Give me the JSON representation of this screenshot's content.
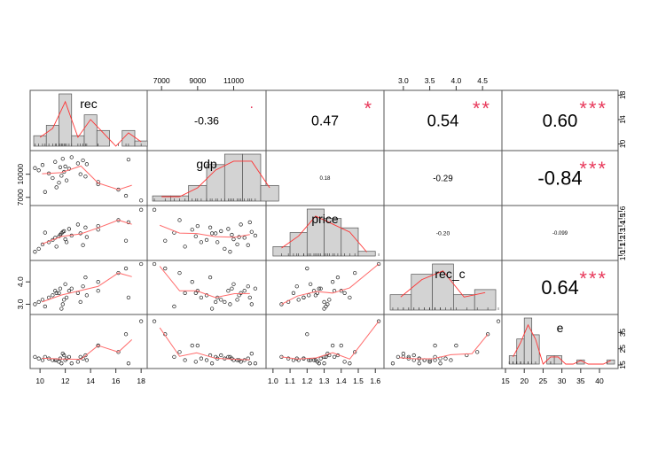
{
  "chart_data": {
    "type": "scatter-matrix",
    "variables": [
      "rec",
      "gdp",
      "price",
      "rec_c",
      "e"
    ],
    "ranges": {
      "rec": [
        9.5,
        18.2
      ],
      "gdp": [
        6400,
        12600
      ],
      "price": [
        0.98,
        1.63
      ],
      "rec_c": [
        2.7,
        4.8
      ],
      "e": [
        15,
        44
      ]
    },
    "ticks": {
      "rec": [
        10,
        12,
        14,
        16,
        18
      ],
      "gdp": [
        7000,
        9000,
        11000
      ],
      "gdp_left": [
        7000,
        10000
      ],
      "price": [
        1.0,
        1.1,
        1.2,
        1.3,
        1.4,
        1.5,
        1.6
      ],
      "rec_c": [
        3.0,
        3.5,
        4.0,
        4.5
      ],
      "rec_c_left": [
        3.0,
        4.0
      ],
      "e": [
        15,
        20,
        25,
        30,
        35,
        40
      ],
      "e_right": [
        15,
        25,
        35
      ],
      "rec_right": [
        10,
        14,
        18
      ]
    },
    "tick_labels": {
      "rec": [
        "10",
        "12",
        "14",
        "16",
        "18"
      ],
      "gdp": [
        "7000",
        "9000",
        "11000"
      ],
      "gdp_left": [
        "7000",
        "10000"
      ],
      "price": [
        "1.0",
        "1.1",
        "1.2",
        "1.3",
        "1.4",
        "1.5",
        "1.6"
      ],
      "rec_c": [
        "3.0",
        "3.5",
        "4.0",
        "4.5"
      ],
      "rec_c_left": [
        "3.0",
        "4.0"
      ],
      "e": [
        "15",
        "20",
        "25",
        "30",
        "35",
        "40"
      ],
      "e_right": [
        "15",
        "25",
        "35"
      ],
      "rec_right": [
        "10",
        "14",
        "18"
      ]
    },
    "correlations": [
      {
        "row": 0,
        "col": 1,
        "value": "-0.36",
        "stars": "."
      },
      {
        "row": 0,
        "col": 2,
        "value": "0.47",
        "stars": "*"
      },
      {
        "row": 0,
        "col": 3,
        "value": "0.54",
        "stars": "**"
      },
      {
        "row": 0,
        "col": 4,
        "value": "0.60",
        "stars": "***"
      },
      {
        "row": 1,
        "col": 2,
        "value": "0.18",
        "stars": ""
      },
      {
        "row": 1,
        "col": 3,
        "value": "-0.29",
        "stars": ""
      },
      {
        "row": 1,
        "col": 4,
        "value": "-0.84",
        "stars": "***"
      },
      {
        "row": 2,
        "col": 3,
        "value": "-0.20",
        "stars": ""
      },
      {
        "row": 2,
        "col": 4,
        "value": "-0.099",
        "stars": ""
      },
      {
        "row": 3,
        "col": 4,
        "value": "0.64",
        "stars": "***"
      }
    ],
    "histograms": {
      "rec": {
        "start": 9.5,
        "width": 1,
        "counts": [
          2,
          4,
          10,
          2,
          6,
          3,
          0,
          3,
          1
        ]
      },
      "gdp": {
        "start": 6500,
        "width": 1000,
        "counts": [
          1,
          1,
          3,
          7,
          9,
          9,
          3
        ]
      },
      "price": {
        "start": 1.0,
        "width": 0.1,
        "counts": [
          2,
          5,
          10,
          8,
          6,
          1
        ]
      },
      "rec_c": {
        "start": 2.75,
        "width": 0.4,
        "counts": [
          3,
          7,
          9,
          3,
          4
        ]
      },
      "e": {
        "start": 16,
        "width": 2,
        "counts": [
          2,
          6,
          11,
          7,
          0,
          2,
          2,
          0,
          0,
          1,
          0,
          0,
          0,
          1
        ]
      }
    },
    "observations": [
      [
        9.6,
        10800,
        1.05,
        3.0,
        20
      ],
      [
        9.9,
        10500,
        1.09,
        3.1,
        19
      ],
      [
        10.2,
        11200,
        1.15,
        3.2,
        18
      ],
      [
        10.7,
        10100,
        1.18,
        3.3,
        19
      ],
      [
        11.0,
        9500,
        1.21,
        3.4,
        18
      ],
      [
        11.2,
        11600,
        1.24,
        3.6,
        18
      ],
      [
        11.5,
        8900,
        1.26,
        3.5,
        17
      ],
      [
        11.6,
        10900,
        1.28,
        3.7,
        19
      ],
      [
        11.7,
        9800,
        1.3,
        2.8,
        16
      ],
      [
        11.8,
        12000,
        1.32,
        3.0,
        22
      ],
      [
        11.9,
        10300,
        1.33,
        3.2,
        21
      ],
      [
        12.0,
        11000,
        1.22,
        3.9,
        18
      ],
      [
        12.1,
        9200,
        1.18,
        3.3,
        19
      ],
      [
        12.3,
        10700,
        1.36,
        3.6,
        20
      ],
      [
        13.0,
        11400,
        1.42,
        3.5,
        17
      ],
      [
        13.2,
        10000,
        1.3,
        3.1,
        20
      ],
      [
        13.4,
        11800,
        1.14,
        3.8,
        19
      ],
      [
        13.6,
        9700,
        1.38,
        4.2,
        21
      ],
      [
        13.7,
        11300,
        1.25,
        3.4,
        18
      ],
      [
        14.6,
        8700,
        1.35,
        4.0,
        27
      ],
      [
        14.6,
        9000,
        1.4,
        3.6,
        27
      ],
      [
        16.2,
        8000,
        1.48,
        4.4,
        23
      ],
      [
        16.8,
        7200,
        1.2,
        4.6,
        34
      ],
      [
        17.0,
        11900,
        1.45,
        3.3,
        16
      ],
      [
        18.0,
        6600,
        1.62,
        4.8,
        42
      ],
      [
        12.5,
        12200,
        1.27,
        3.7,
        16
      ],
      [
        11.3,
        8300,
        1.12,
        3.5,
        18
      ],
      [
        10.4,
        7700,
        1.31,
        2.9,
        20
      ]
    ],
    "smooth_color": "#ff6b6b",
    "star_color": "#e8385a",
    "hist_fill": "#d3d3d3"
  }
}
